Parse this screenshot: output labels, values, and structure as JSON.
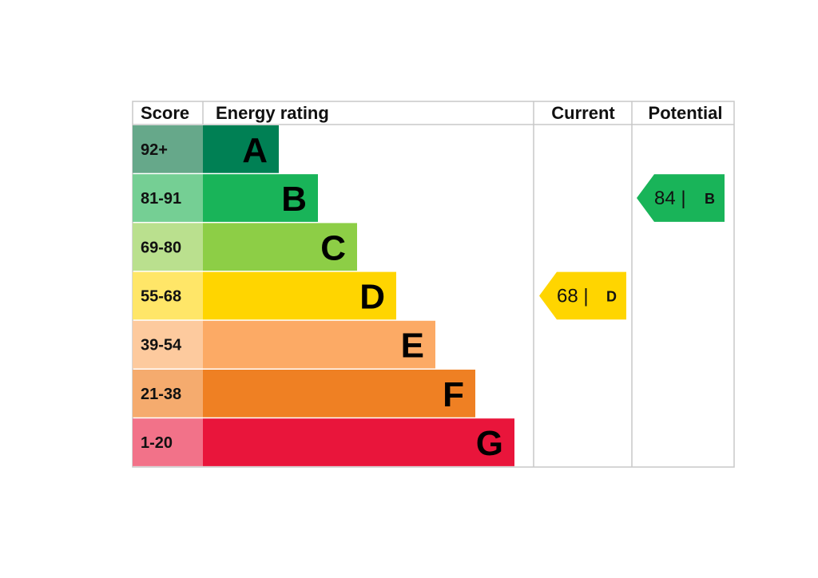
{
  "headers": {
    "score": "Score",
    "energy_rating": "Energy rating",
    "current": "Current",
    "potential": "Potential"
  },
  "chart_data": {
    "type": "bar",
    "bands": [
      {
        "letter": "A",
        "score_range": "92+",
        "bar_color": "#008054",
        "score_bg": "#66a88a"
      },
      {
        "letter": "B",
        "score_range": "81-91",
        "bar_color": "#19b459",
        "score_bg": "#75cf94"
      },
      {
        "letter": "C",
        "score_range": "69-80",
        "bar_color": "#8dce46",
        "score_bg": "#bae08e"
      },
      {
        "letter": "D",
        "score_range": "55-68",
        "bar_color": "#ffd500",
        "score_bg": "#ffe668"
      },
      {
        "letter": "E",
        "score_range": "39-54",
        "bar_color": "#fcaa65",
        "score_bg": "#fdca9e"
      },
      {
        "letter": "F",
        "score_range": "21-38",
        "bar_color": "#ef8023",
        "score_bg": "#f5ab6e"
      },
      {
        "letter": "G",
        "score_range": "1-20",
        "bar_color": "#e9153b",
        "score_bg": "#f27289"
      }
    ],
    "current": {
      "score": 68,
      "score_label": "68 |",
      "band": "D",
      "color": "#ffd500"
    },
    "potential": {
      "score": 84,
      "score_label": "84 |",
      "band": "B",
      "color": "#19b459"
    }
  }
}
